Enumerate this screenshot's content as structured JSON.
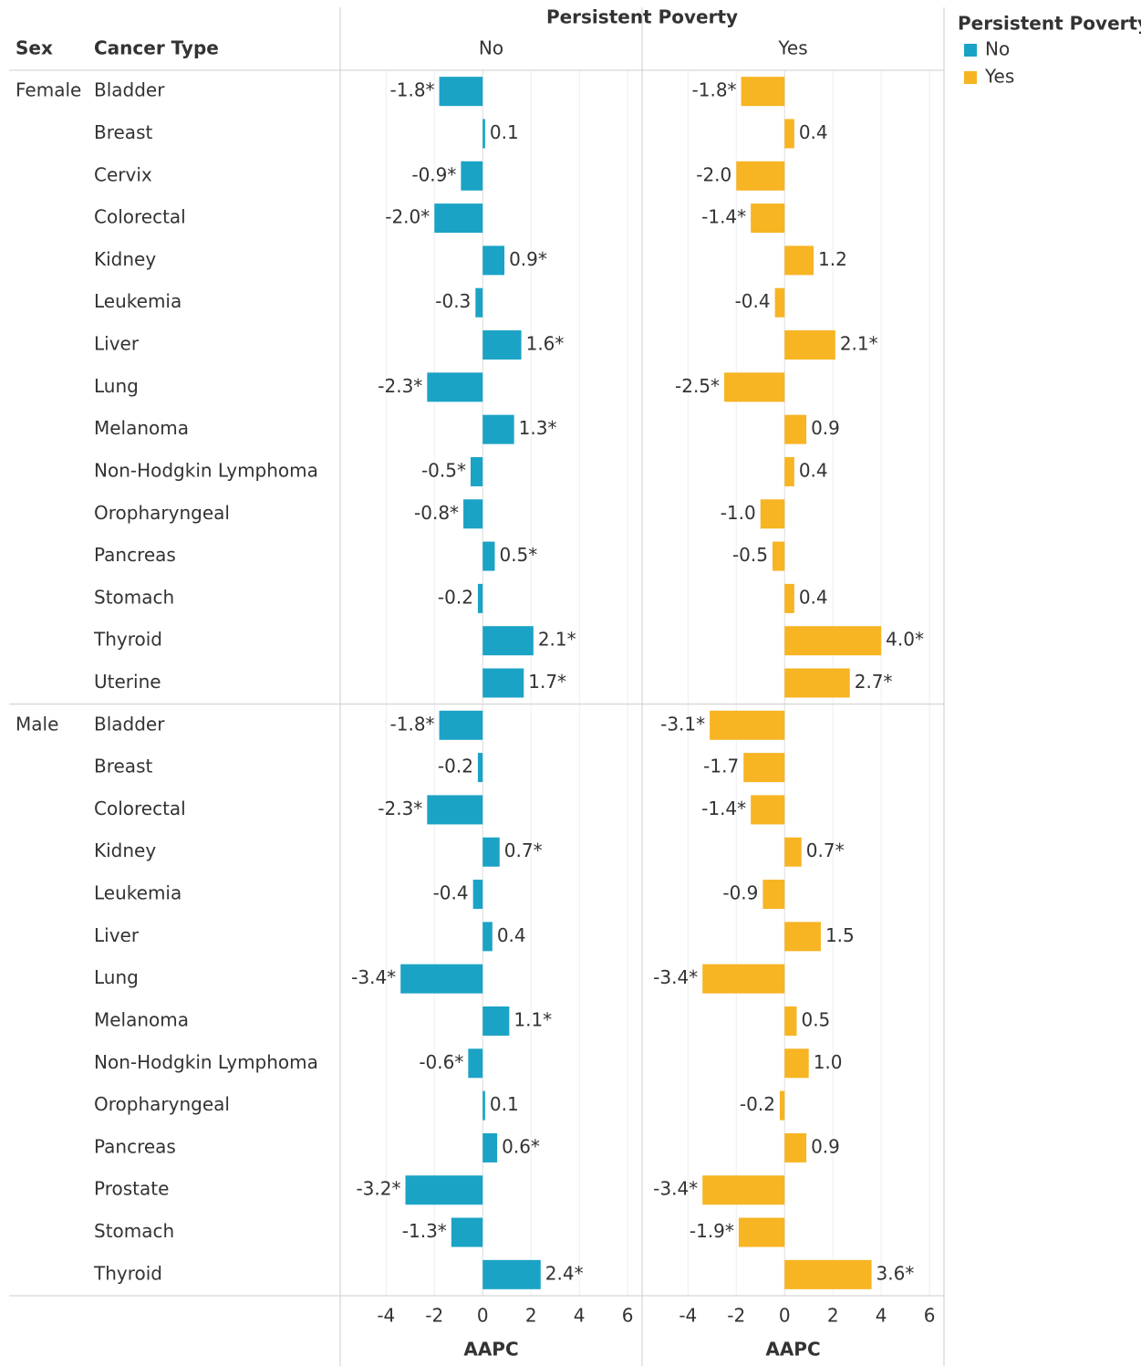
{
  "chart_data": {
    "type": "bar",
    "orientation": "horizontal",
    "title": "Persistent Poverty",
    "row_headers": [
      "Sex",
      "Cancer Type"
    ],
    "legend_title": "Persistent Poverty",
    "x_label": "AAPC",
    "series": [
      {
        "name": "No",
        "color": "#1ba3c6"
      },
      {
        "name": "Yes",
        "color": "#f7b423"
      }
    ],
    "xlim": [
      -5.9,
      6.6
    ],
    "xticks": [
      -4,
      -2,
      0,
      2,
      4,
      6
    ],
    "grid": true,
    "groups": [
      {
        "name": "Female",
        "categories": [
          "Bladder",
          "Breast",
          "Cervix",
          "Colorectal",
          "Kidney",
          "Leukemia",
          "Liver",
          "Lung",
          "Melanoma",
          "Non-Hodgkin Lymphoma",
          "Oropharyngeal",
          "Pancreas",
          "Stomach",
          "Thyroid",
          "Uterine"
        ],
        "series": [
          {
            "values": [
              -1.8,
              0.1,
              -0.9,
              -2,
              0.9,
              -0.3,
              1.6,
              -2.3,
              1.3,
              -0.5,
              -0.8,
              0.5,
              -0.2,
              2.1,
              1.7
            ],
            "value_labels": [
              "-1.8*",
              "0.1",
              "-0.9*",
              "-2.0*",
              "0.9*",
              "-0.3",
              "1.6*",
              "-2.3*",
              "1.3*",
              "-0.5*",
              "-0.8*",
              "0.5*",
              "-0.2",
              "2.1*",
              "1.7*"
            ]
          },
          {
            "values": [
              -1.8,
              0.4,
              -2,
              -1.4,
              1.2,
              -0.4,
              2.1,
              -2.5,
              0.9,
              0.4,
              -1,
              -0.5,
              0.4,
              4,
              2.7
            ],
            "value_labels": [
              "-1.8*",
              "0.4",
              "-2.0",
              "-1.4*",
              "1.2",
              "-0.4",
              "2.1*",
              "-2.5*",
              "0.9",
              "0.4",
              "-1.0",
              "-0.5",
              "0.4",
              "4.0*",
              "2.7*"
            ]
          }
        ]
      },
      {
        "name": "Male",
        "categories": [
          "Bladder",
          "Breast",
          "Colorectal",
          "Kidney",
          "Leukemia",
          "Liver",
          "Lung",
          "Melanoma",
          "Non-Hodgkin Lymphoma",
          "Oropharyngeal",
          "Pancreas",
          "Prostate",
          "Stomach",
          "Thyroid"
        ],
        "series": [
          {
            "values": [
              -1.8,
              -0.2,
              -2.3,
              0.7,
              -0.4,
              0.4,
              -3.4,
              1.1,
              -0.6,
              0.1,
              0.6,
              -3.2,
              -1.3,
              2.4
            ],
            "value_labels": [
              "-1.8*",
              "-0.2",
              "-2.3*",
              "0.7*",
              "-0.4",
              "0.4",
              "-3.4*",
              "1.1*",
              "-0.6*",
              "0.1",
              "0.6*",
              "-3.2*",
              "-1.3*",
              "2.4*"
            ]
          },
          {
            "values": [
              -3.1,
              -1.7,
              -1.4,
              0.7,
              -0.9,
              1.5,
              -3.4,
              0.5,
              1,
              -0.2,
              0.9,
              -3.4,
              -1.9,
              3.6
            ],
            "value_labels": [
              "-3.1*",
              "-1.7",
              "-1.4*",
              "0.7*",
              "-0.9",
              "1.5",
              "-3.4*",
              "0.5",
              "1.0",
              "-0.2",
              "0.9",
              "-3.4*",
              "-1.9*",
              "3.6*"
            ]
          }
        ]
      }
    ]
  }
}
